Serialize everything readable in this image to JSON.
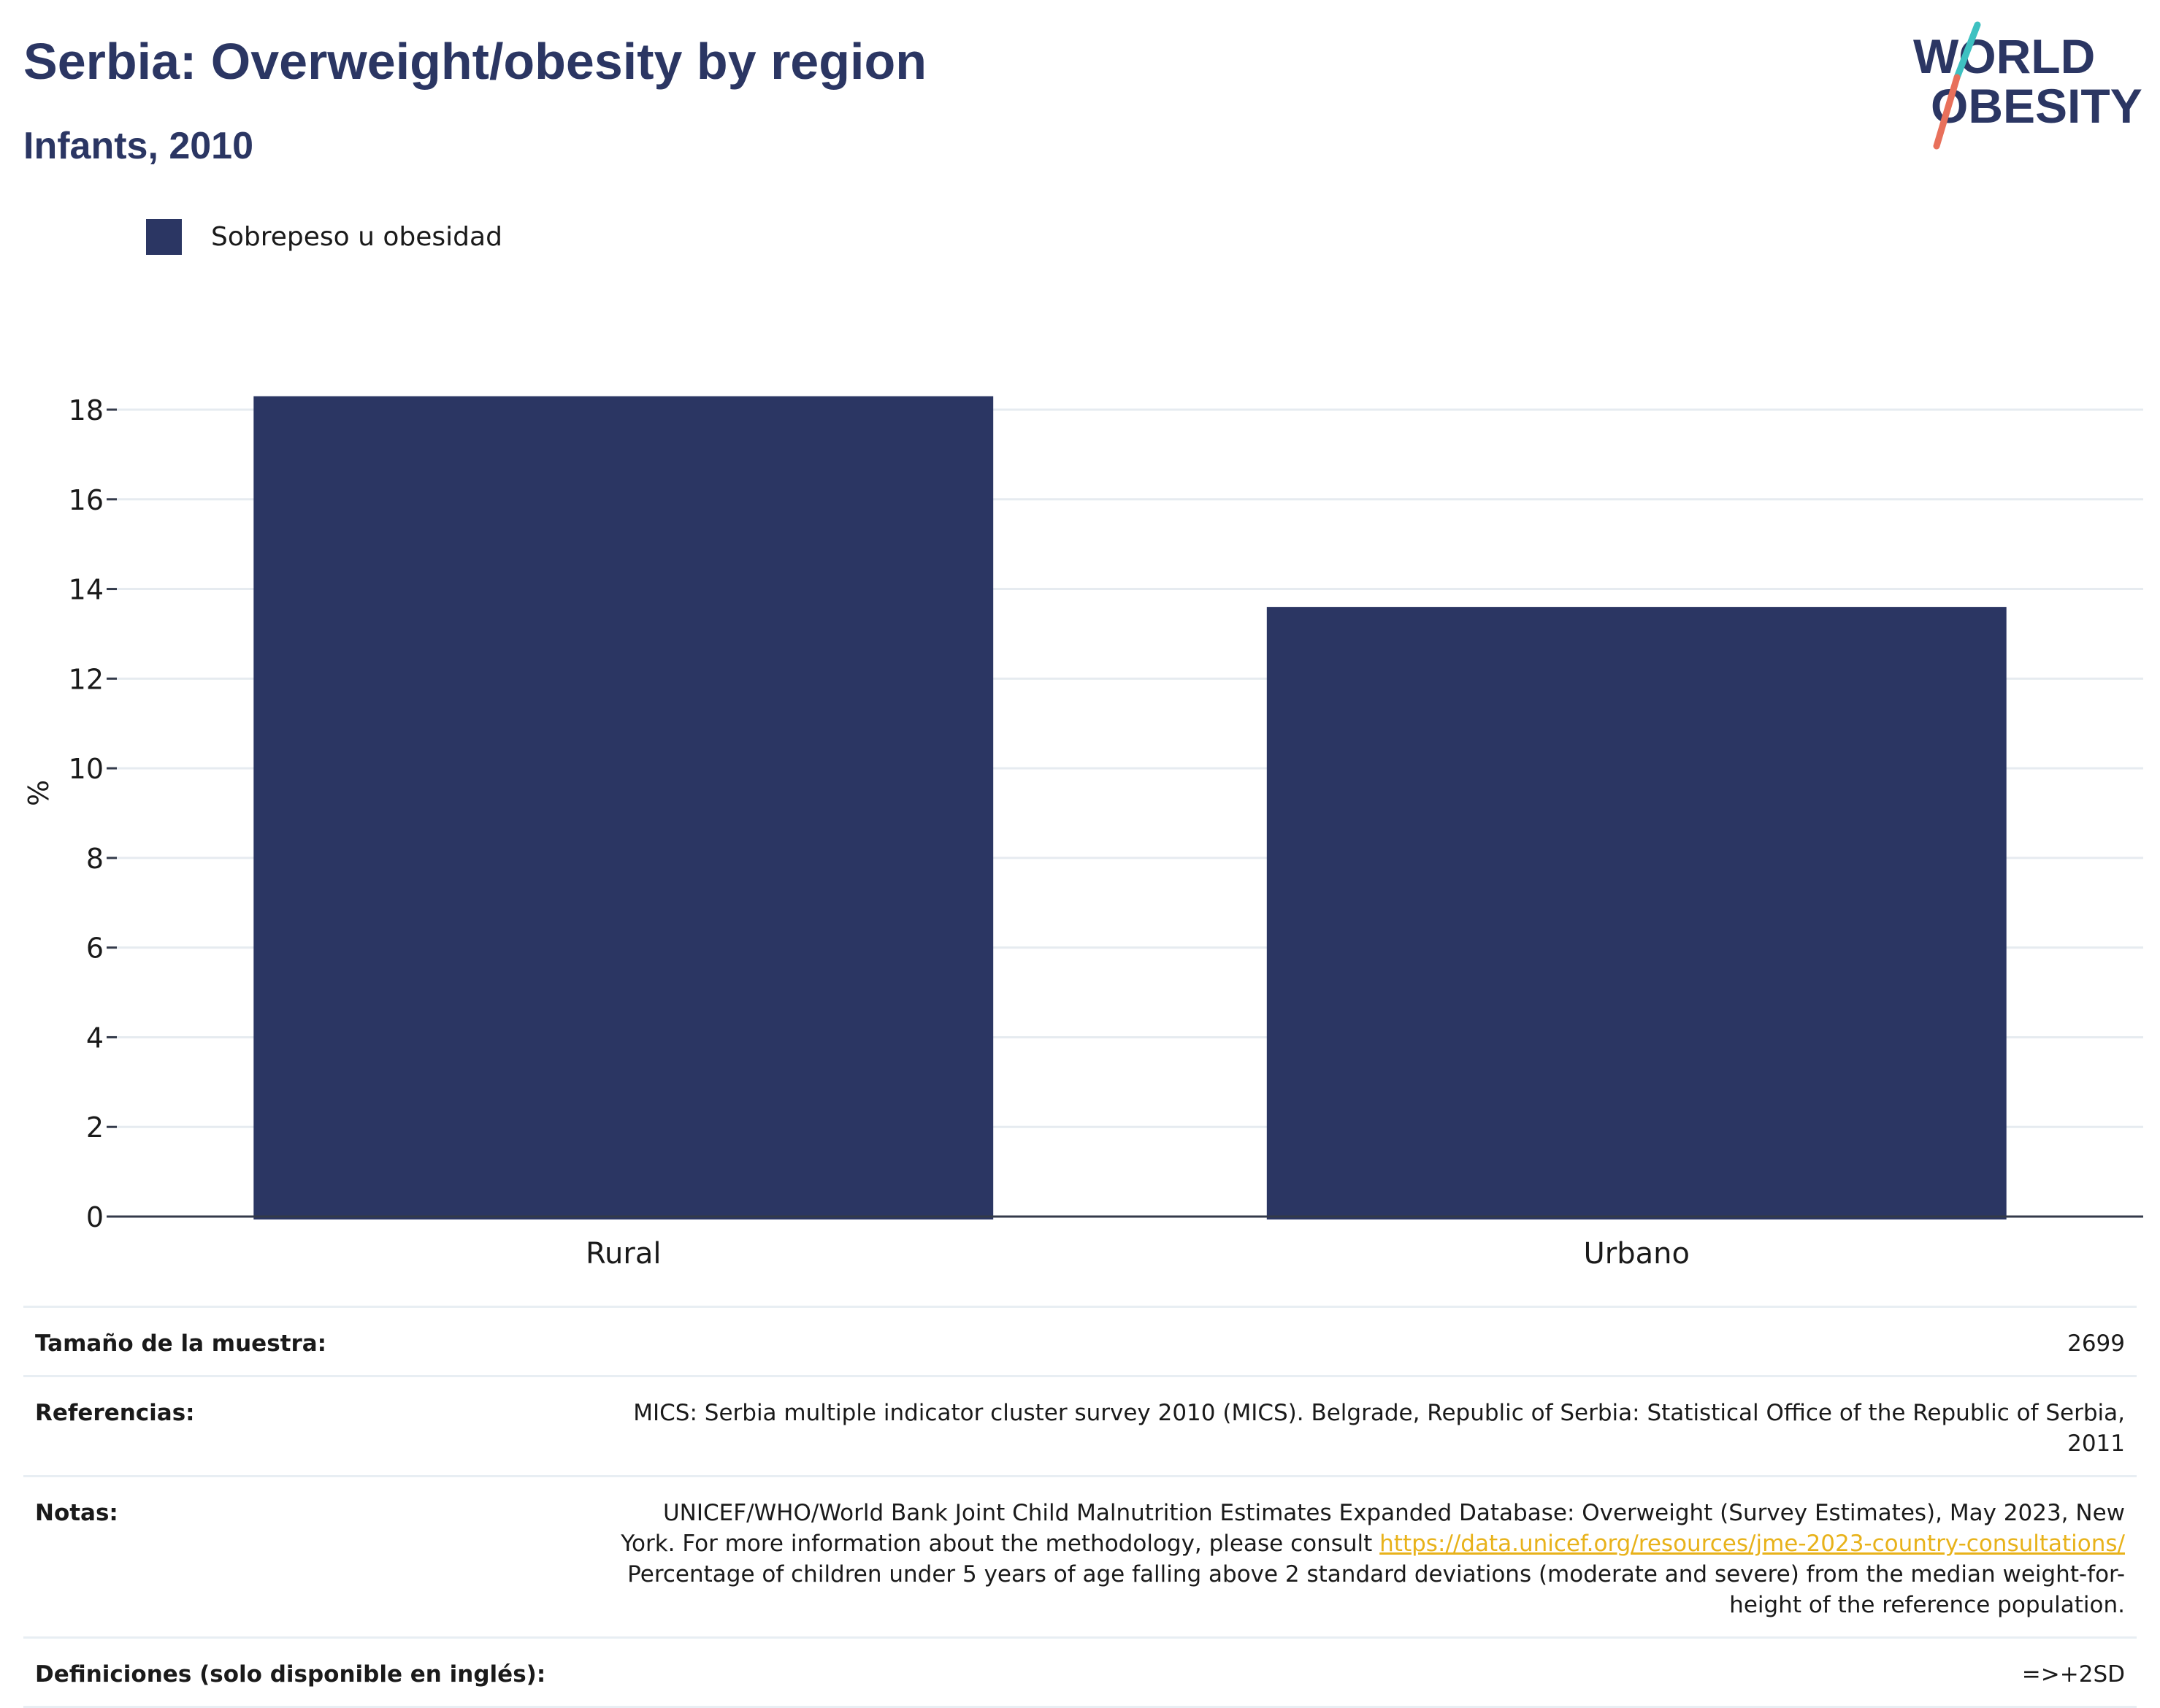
{
  "header": {
    "title": "Serbia: Overweight/obesity by region",
    "subtitle": "Infants, 2010"
  },
  "logo": {
    "line1": "WORLD",
    "line2": "OBESITY",
    "colors": {
      "text": "#2b3663",
      "slash_top": "#3ec1c1",
      "slash_bottom": "#e8705b"
    }
  },
  "legend": {
    "label": "Sobrepeso u obesidad",
    "color": "#2b3663"
  },
  "chart_data": {
    "type": "bar",
    "categories": [
      "Rural",
      "Urbano"
    ],
    "series": [
      {
        "name": "Sobrepeso u obesidad",
        "values": [
          18.3,
          13.6
        ]
      }
    ],
    "ylabel": "%",
    "xlabel": "",
    "ylim": [
      0,
      18.6
    ],
    "yticks": [
      0,
      2,
      4,
      6,
      8,
      10,
      12,
      14,
      16,
      18
    ],
    "grid": true,
    "legend_position": "top-left",
    "bar_color": "#2b3663"
  },
  "table": {
    "sample": {
      "label": "Tamaño de la muestra:",
      "value": "2699"
    },
    "references": {
      "label": "Referencias:",
      "value": "MICS: Serbia multiple indicator cluster survey 2010 (MICS). Belgrade, Republic of Serbia: Statistical Office of the Republic of Serbia, 2011"
    },
    "notes": {
      "label": "Notas:",
      "text_before": "UNICEF/WHO/World Bank Joint Child Malnutrition Estimates Expanded Database: Overweight (Survey Estimates), May 2023, New York. For more information about the methodology, please consult ",
      "link": "https://data.unicef.org/resources/jme-2023-country-consultations/",
      "text_after": " Percentage of children under 5 years of age falling above 2 standard deviations (moderate and severe) from the median weight-for-height of the reference population."
    },
    "definitions": {
      "label": "Definiciones (solo disponible en inglés):",
      "value": "=>+2SD"
    }
  }
}
